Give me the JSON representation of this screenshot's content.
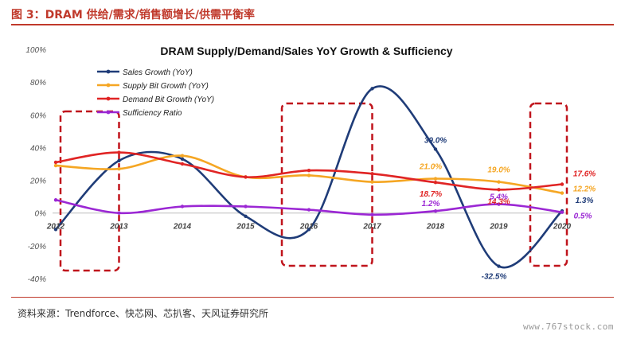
{
  "header": {
    "figure_title": "图 3：DRAM 供给/需求/销售额增长/供需平衡率"
  },
  "footer": {
    "source": "资料来源：Trendforce、快芯网、芯扒客、天风证券研究所",
    "watermark": "www.767stock.com"
  },
  "chart_data": {
    "type": "line",
    "title": "DRAM Supply/Demand/Sales YoY Growth & Sufficiency",
    "x": [
      "2012",
      "2013",
      "2014",
      "2015",
      "2016",
      "2017",
      "2018",
      "2019",
      "2020"
    ],
    "ylim": [
      -40,
      100
    ],
    "yticks": [
      "100%",
      "80%",
      "60%",
      "40%",
      "20%",
      "0%",
      "-20%",
      "-40%"
    ],
    "grid": false,
    "legend_position": "top-left",
    "series": [
      {
        "name": "Sales Growth (YoY)",
        "color": "#1f3c78",
        "values": [
          -10,
          32,
          33,
          -2,
          -10,
          76,
          39,
          -32.5,
          1.3
        ]
      },
      {
        "name": "Supply Bit Growth (YoY)",
        "color": "#f5a623",
        "values": [
          29,
          27,
          35,
          22,
          23,
          19,
          21,
          19,
          12.2
        ]
      },
      {
        "name": "Demand Bit Growth (YoY)",
        "color": "#e02424",
        "values": [
          31,
          37,
          30,
          22,
          26,
          24,
          18.7,
          14.3,
          17.6
        ]
      },
      {
        "name": "Sufficiency Ratio",
        "color": "#9b27d4",
        "values": [
          8,
          0,
          4,
          4,
          2,
          -1,
          1.2,
          5.4,
          0.5
        ]
      }
    ],
    "annotations": [
      {
        "text": "39.0%",
        "series": 0,
        "index": 6,
        "color": "#1f3c78"
      },
      {
        "text": "-32.5%",
        "series": 0,
        "index": 7,
        "color": "#1f3c78"
      },
      {
        "text": "1.3%",
        "series": 0,
        "index": 8,
        "color": "#1f3c78"
      },
      {
        "text": "21.0%",
        "series": 1,
        "index": 6,
        "color": "#f5a623"
      },
      {
        "text": "19.0%",
        "series": 1,
        "index": 7,
        "color": "#f5a623"
      },
      {
        "text": "12.2%",
        "series": 1,
        "index": 8,
        "color": "#f5a623"
      },
      {
        "text": "18.7%",
        "series": 2,
        "index": 6,
        "color": "#e02424"
      },
      {
        "text": "14.3%",
        "series": 2,
        "index": 7,
        "color": "#e02424"
      },
      {
        "text": "17.6%",
        "series": 2,
        "index": 8,
        "color": "#e02424"
      },
      {
        "text": "1.2%",
        "series": 3,
        "index": 6,
        "color": "#9b27d4"
      },
      {
        "text": "5.4%",
        "series": 3,
        "index": 7,
        "color": "#9b27d4"
      },
      {
        "text": "0.5%",
        "series": 3,
        "index": 8,
        "color": "#9b27d4"
      }
    ],
    "highlight_ranges": [
      {
        "from": "2012",
        "to": "2013"
      },
      {
        "from": "2016",
        "to": "2017"
      },
      {
        "from": "2020",
        "to": "2020"
      }
    ],
    "highlight_color": "#c0141c"
  }
}
